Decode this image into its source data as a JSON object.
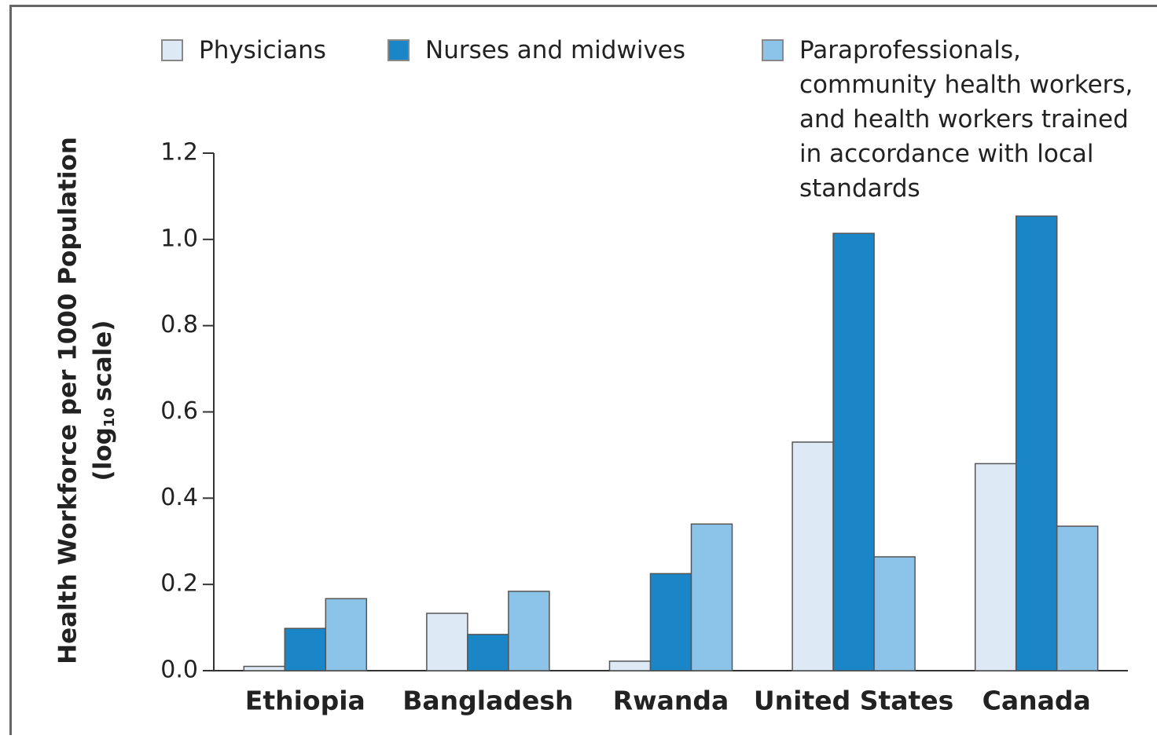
{
  "chart_data": {
    "type": "bar",
    "ylabel": [
      "Health Workforce per 1000 Population",
      "(log",
      "10",
      "scale)"
    ],
    "categories": [
      "Ethiopia",
      "Bangladesh",
      "Rwanda",
      "United States",
      "Canada"
    ],
    "series": [
      {
        "name": "Physicians",
        "color": "#dde9f5",
        "values": [
          0.01,
          0.133,
          0.022,
          0.53,
          0.48
        ]
      },
      {
        "name": "Nurses and midwives",
        "color": "#1a86c8",
        "values": [
          0.098,
          0.084,
          0.225,
          1.014,
          1.054
        ]
      },
      {
        "name": "Paraprofessionals, community health workers, and health workers trained in accordance with local standards",
        "color": "#8cc3e8",
        "values": [
          0.167,
          0.184,
          0.34,
          0.264,
          0.335
        ]
      }
    ],
    "ylim": [
      0,
      1.2
    ],
    "yticks": [
      {
        "value": 0,
        "label": "0.0"
      },
      0.2,
      0.4,
      0.6,
      0.8,
      {
        "value": 1,
        "label": "1.0"
      },
      1.2
    ]
  }
}
